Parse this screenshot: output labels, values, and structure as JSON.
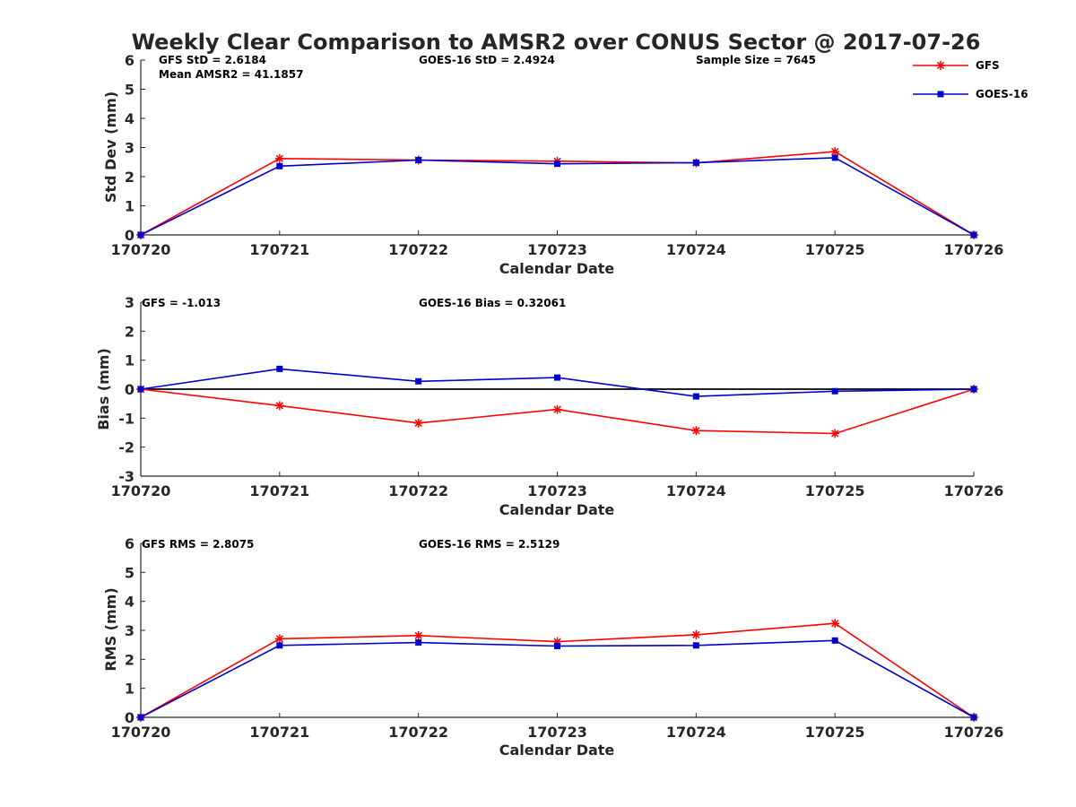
{
  "title": "Weekly Clear Comparison to AMSR2 over CONUS Sector @ 2017-07-26",
  "colors": {
    "gfs": "#ff0000",
    "goes": "#0000cc",
    "axis": "#262626",
    "zero_line": "#000000"
  },
  "legend": [
    {
      "label": "GFS",
      "marker": "asterisk",
      "color": "#ff0000"
    },
    {
      "label": "GOES-16",
      "marker": "square",
      "color": "#0000cc"
    }
  ],
  "chart_data": [
    {
      "type": "line",
      "name": "stddev",
      "categories": [
        "170720",
        "170721",
        "170722",
        "170723",
        "170724",
        "170725",
        "170726"
      ],
      "series": [
        {
          "name": "GFS",
          "values": [
            0,
            2.62,
            2.57,
            2.53,
            2.47,
            2.86,
            0
          ]
        },
        {
          "name": "GOES-16",
          "values": [
            0,
            2.36,
            2.57,
            2.44,
            2.48,
            2.65,
            0
          ]
        }
      ],
      "xlabel": "Calendar Date",
      "ylabel": "Std Dev (mm)",
      "ylim": [
        0,
        6
      ],
      "yticks": [
        "0",
        "1",
        "2",
        "3",
        "4",
        "5",
        "6"
      ],
      "zero_line": false,
      "annotations": [
        "GFS StD = 2.6184",
        "Mean AMSR2 = 41.1857",
        "GOES-16 StD = 2.4924",
        "Sample Size = 7645"
      ]
    },
    {
      "type": "line",
      "name": "bias",
      "categories": [
        "170720",
        "170721",
        "170722",
        "170723",
        "170724",
        "170725",
        "170726"
      ],
      "series": [
        {
          "name": "GFS",
          "values": [
            0,
            -0.57,
            -1.17,
            -0.7,
            -1.43,
            -1.53,
            0
          ]
        },
        {
          "name": "GOES-16",
          "values": [
            0,
            0.7,
            0.27,
            0.4,
            -0.25,
            -0.07,
            0
          ]
        }
      ],
      "xlabel": "Calendar Date",
      "ylabel": "Bias (mm)",
      "ylim": [
        -3,
        3
      ],
      "yticks": [
        "-3",
        "-2",
        "-1",
        "0",
        "1",
        "2",
        "3"
      ],
      "zero_line": true,
      "annotations": [
        "GFS = -1.013",
        "GOES-16 Bias  = 0.32061"
      ]
    },
    {
      "type": "line",
      "name": "rms",
      "categories": [
        "170720",
        "170721",
        "170722",
        "170723",
        "170724",
        "170725",
        "170726"
      ],
      "series": [
        {
          "name": "GFS",
          "values": [
            0,
            2.71,
            2.82,
            2.61,
            2.85,
            3.24,
            0
          ]
        },
        {
          "name": "GOES-16",
          "values": [
            0,
            2.48,
            2.58,
            2.46,
            2.48,
            2.65,
            0
          ]
        }
      ],
      "xlabel": "Calendar Date",
      "ylabel": "RMS (mm)",
      "ylim": [
        0,
        6
      ],
      "yticks": [
        "0",
        "1",
        "2",
        "3",
        "4",
        "5",
        "6"
      ],
      "zero_line": false,
      "annotations": [
        "GFS RMS = 2.8075",
        "GOES-16 RMS = 2.5129"
      ]
    }
  ]
}
